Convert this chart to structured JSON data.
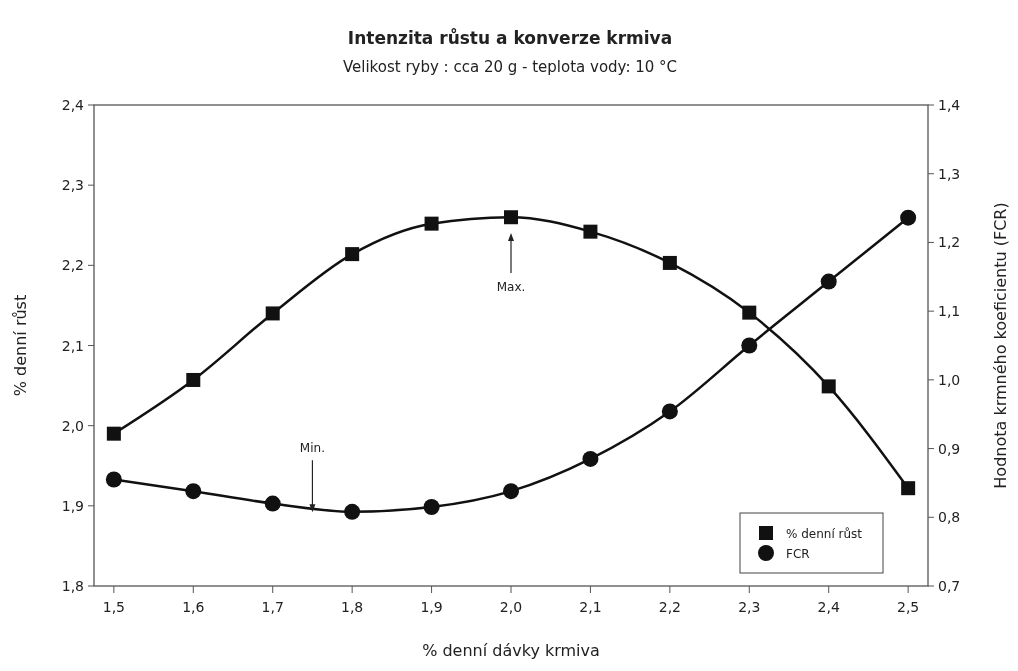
{
  "chart_data": {
    "type": "line",
    "title": "Intenzita růstu a konverze krmiva",
    "subtitle": "Velikost ryby : cca 20 g - teplota vody: 10 °C",
    "xlabel": "% denní dávky krmiva",
    "ylabel": "% denní růst",
    "y2label": "Hodnota krmného koeficientu (FCR)",
    "x": [
      1.5,
      1.6,
      1.7,
      1.8,
      1.9,
      2.0,
      2.1,
      2.2,
      2.3,
      2.4,
      2.5
    ],
    "series": [
      {
        "name": "% denní růst",
        "color": "#111111",
        "marker": "square",
        "values": [
          1.99,
          2.057,
          2.14,
          2.214,
          2.252,
          2.26,
          2.242,
          2.203,
          2.141,
          2.049,
          1.922
        ]
      },
      {
        "name": "FCR",
        "color": "#111111",
        "marker": "circle",
        "axis": "y2",
        "values": [
          0.855,
          0.838,
          0.82,
          0.808,
          0.815,
          0.838,
          0.885,
          0.954,
          1.05,
          1.143,
          1.236
        ]
      }
    ],
    "xlim": [
      1.475,
      2.525
    ],
    "xticks": [
      {
        "value": 1.5,
        "label": "1,5"
      },
      {
        "value": 1.6,
        "label": "1,6"
      },
      {
        "value": 1.7,
        "label": "1,7"
      },
      {
        "value": 1.8,
        "label": "1,8"
      },
      {
        "value": 1.9,
        "label": "1,9"
      },
      {
        "value": 2.0,
        "label": "2,0"
      },
      {
        "value": 2.1,
        "label": "2,1"
      },
      {
        "value": 2.2,
        "label": "2,2"
      },
      {
        "value": 2.3,
        "label": "2,3"
      },
      {
        "value": 2.4,
        "label": "2,4"
      },
      {
        "value": 2.5,
        "label": "2,5"
      }
    ],
    "ylim": [
      1.8,
      2.4
    ],
    "yticks": [
      {
        "value": 1.8,
        "label": "1,8"
      },
      {
        "value": 1.9,
        "label": "1,9"
      },
      {
        "value": 2.0,
        "label": "2,0"
      },
      {
        "value": 2.1,
        "label": "2,1"
      },
      {
        "value": 2.2,
        "label": "2,2"
      },
      {
        "value": 2.3,
        "label": "2,3"
      },
      {
        "value": 2.4,
        "label": "2,4"
      }
    ],
    "y2lim": [
      0.7,
      1.4
    ],
    "y2ticks": [
      {
        "value": 0.7,
        "label": "0,7"
      },
      {
        "value": 0.8,
        "label": "0,8"
      },
      {
        "value": 0.9,
        "label": "0,9"
      },
      {
        "value": 1.0,
        "label": "1,0"
      },
      {
        "value": 1.1,
        "label": "1,1"
      },
      {
        "value": 1.2,
        "label": "1,2"
      },
      {
        "value": 1.3,
        "label": "1,3"
      },
      {
        "value": 1.4,
        "label": "1,4"
      }
    ],
    "annotations": [
      "Max.",
      {
        "text": "Min.",
        "x": 1.75,
        "y": 1.892
      }
    ],
    "legend": "bottom right",
    "line_style": "solid"
  }
}
